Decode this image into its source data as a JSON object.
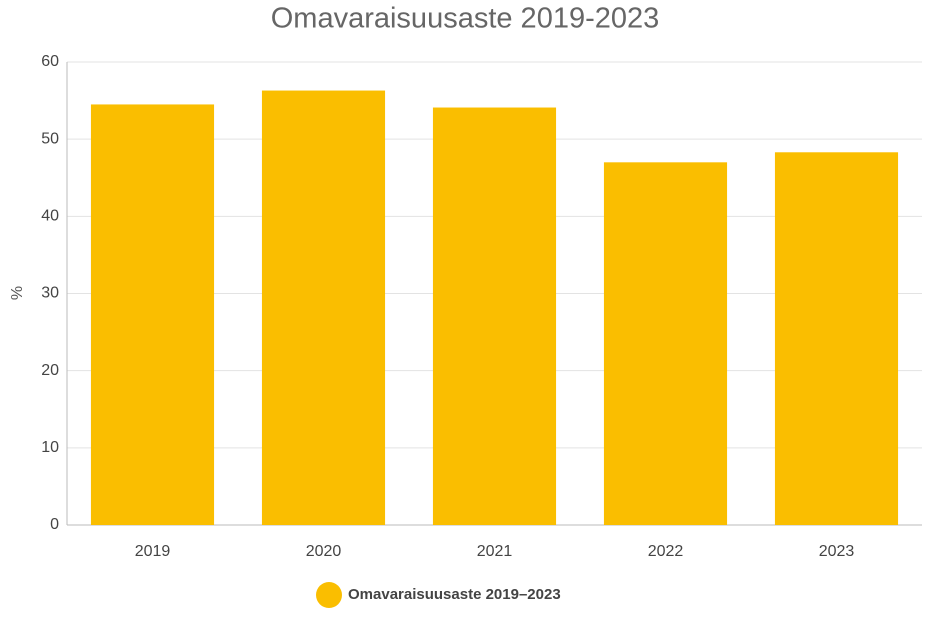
{
  "chart_data": {
    "type": "bar",
    "title": "Omavaraisuusaste 2019-2023",
    "y_label": "%",
    "categories": [
      "2019",
      "2020",
      "2021",
      "2022",
      "2023"
    ],
    "series": [
      {
        "name": "Omavaraisuusaste 2019–2023",
        "color": "#fabe00",
        "values": [
          54.5,
          56.3,
          54.1,
          47.0,
          48.3
        ]
      }
    ],
    "ylim": [
      0,
      60
    ],
    "yticks": [
      0,
      10,
      20,
      30,
      40,
      50,
      60
    ],
    "grid": true
  }
}
